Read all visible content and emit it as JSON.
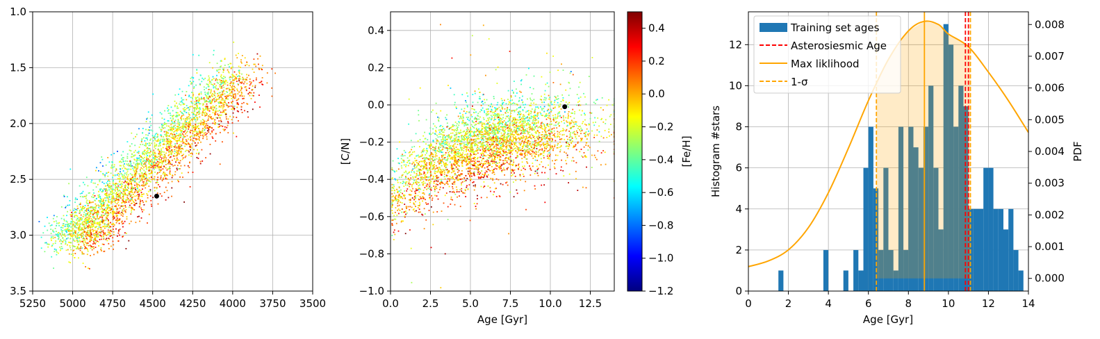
{
  "colors": {
    "grid": "#b0b0b0",
    "hist_bar": "#1f77b4",
    "asteroseismic": "#ff0000",
    "ml": "#ffa500",
    "sigma_band": "#ffa500",
    "colormap": [
      "#00007f",
      "#0000ff",
      "#007fff",
      "#00ffff",
      "#7fff7f",
      "#ffff00",
      "#ff7f00",
      "#ff0000",
      "#7f0000"
    ]
  },
  "chart_data": [
    {
      "type": "scatter",
      "title": "",
      "xlabel": "",
      "ylabel": "",
      "xlim": [
        5250,
        3500
      ],
      "ylim": [
        3.5,
        1.0
      ],
      "x_inverted": true,
      "y_inverted": true,
      "grid": true,
      "xticks": [
        5250,
        5000,
        4750,
        4500,
        4250,
        4000,
        3750,
        3500
      ],
      "xtick_labels": [
        "5250",
        "5000",
        "4750",
        "4500",
        "4250",
        "4000",
        "3750",
        "3500"
      ],
      "yticks": [
        1.0,
        1.5,
        2.0,
        2.5,
        3.0,
        3.5
      ],
      "ytick_labels": [
        "1.0",
        "1.5",
        "2.0",
        "2.5",
        "3.0",
        "3.5"
      ],
      "colored_by": "[Fe/H]",
      "points_described": "several thousand stars along the red-giant branch, Teff vs log g; metal-poor (cyan/blue) at left, metal-rich (red) at right",
      "highlight_point": {
        "x": 4475,
        "y": 2.65
      }
    },
    {
      "type": "scatter",
      "title": "",
      "xlabel": "Age [Gyr]",
      "ylabel": "[C/N]",
      "xlim": [
        0,
        14
      ],
      "ylim": [
        -1.0,
        0.5
      ],
      "grid": true,
      "xticks": [
        0.0,
        2.5,
        5.0,
        7.5,
        10.0,
        12.5
      ],
      "xtick_labels": [
        "0.0",
        "2.5",
        "5.0",
        "7.5",
        "10.0",
        "12.5"
      ],
      "yticks": [
        -1.0,
        -0.8,
        -0.6,
        -0.4,
        -0.2,
        0.0,
        0.2,
        0.4
      ],
      "ytick_labels": [
        "−1.0",
        "−0.8",
        "−0.6",
        "−0.4",
        "−0.2",
        "0.0",
        "0.2",
        "0.4"
      ],
      "colored_by": "[Fe/H]",
      "highlight_point": {
        "x": 10.9,
        "y": -0.01
      },
      "colorbar": {
        "label": "[Fe/H]",
        "range": [
          -1.2,
          0.5
        ],
        "ticks": [
          -1.2,
          -1.0,
          -0.8,
          -0.6,
          -0.4,
          -0.2,
          0.0,
          0.2,
          0.4
        ],
        "tick_labels": [
          "−1.2",
          "−1.0",
          "−0.8",
          "−0.6",
          "−0.4",
          "−0.2",
          "0.0",
          "0.2",
          "0.4"
        ]
      }
    },
    {
      "type": "bar",
      "title": "",
      "xlabel": "Age [Gyr]",
      "ylabel": "Histogram #stars",
      "y2label": "PDF",
      "xlim": [
        0,
        14
      ],
      "ylim": [
        0,
        13.6
      ],
      "y2lim": [
        -0.0004,
        0.0084
      ],
      "grid": true,
      "legend_position": "top-left",
      "xticks": [
        0,
        2,
        4,
        6,
        8,
        10,
        12,
        14
      ],
      "xtick_labels": [
        "0",
        "2",
        "4",
        "6",
        "8",
        "10",
        "12",
        "14"
      ],
      "yticks": [
        0,
        2,
        4,
        6,
        8,
        10,
        12
      ],
      "ytick_labels": [
        "0",
        "2",
        "4",
        "6",
        "8",
        "10",
        "12"
      ],
      "y2ticks": [
        0.0,
        0.001,
        0.002,
        0.003,
        0.004,
        0.005,
        0.006,
        0.007,
        0.008
      ],
      "y2tick_labels": [
        "0.000",
        "0.001",
        "0.002",
        "0.003",
        "0.004",
        "0.005",
        "0.006",
        "0.007",
        "0.008"
      ],
      "bin_width": 0.25,
      "bins": [
        {
          "x": 1.5,
          "count": 1
        },
        {
          "x": 3.75,
          "count": 2
        },
        {
          "x": 4.75,
          "count": 1
        },
        {
          "x": 5.25,
          "count": 2
        },
        {
          "x": 5.5,
          "count": 1
        },
        {
          "x": 5.75,
          "count": 6
        },
        {
          "x": 6.0,
          "count": 8
        },
        {
          "x": 6.25,
          "count": 5
        },
        {
          "x": 6.5,
          "count": 2
        },
        {
          "x": 6.75,
          "count": 6
        },
        {
          "x": 7.0,
          "count": 2
        },
        {
          "x": 7.25,
          "count": 1
        },
        {
          "x": 7.5,
          "count": 8
        },
        {
          "x": 7.75,
          "count": 2
        },
        {
          "x": 8.0,
          "count": 8
        },
        {
          "x": 8.25,
          "count": 7
        },
        {
          "x": 8.5,
          "count": 6
        },
        {
          "x": 8.75,
          "count": 8
        },
        {
          "x": 9.0,
          "count": 10
        },
        {
          "x": 9.25,
          "count": 6
        },
        {
          "x": 9.5,
          "count": 3
        },
        {
          "x": 9.75,
          "count": 13
        },
        {
          "x": 10.0,
          "count": 12
        },
        {
          "x": 10.25,
          "count": 8
        },
        {
          "x": 10.5,
          "count": 10
        },
        {
          "x": 10.75,
          "count": 9
        },
        {
          "x": 11.0,
          "count": 4
        },
        {
          "x": 11.25,
          "count": 4
        },
        {
          "x": 11.5,
          "count": 4
        },
        {
          "x": 11.75,
          "count": 6
        },
        {
          "x": 12.0,
          "count": 6
        },
        {
          "x": 12.25,
          "count": 4
        },
        {
          "x": 12.5,
          "count": 4
        },
        {
          "x": 12.75,
          "count": 3
        },
        {
          "x": 13.0,
          "count": 4
        },
        {
          "x": 13.25,
          "count": 2
        },
        {
          "x": 13.5,
          "count": 1
        }
      ],
      "pdf_curve": {
        "x": [
          0,
          1,
          2,
          3,
          4,
          5,
          6,
          7,
          8,
          8.8,
          9.5,
          10,
          11,
          12,
          13,
          14
        ],
        "y": [
          0.00037,
          0.00055,
          0.0009,
          0.0016,
          0.0027,
          0.0041,
          0.0056,
          0.0069,
          0.0078,
          0.0081,
          0.008,
          0.0077,
          0.0073,
          0.0065,
          0.0056,
          0.0046
        ]
      },
      "asteroseismic_age": [
        10.85,
        11.0
      ],
      "max_likelihood_age": 8.8,
      "sigma_range": [
        6.4,
        11.1
      ],
      "sigma_band_bottom": 0.0
    }
  ],
  "legend": [
    {
      "label": "Training set ages",
      "style": "patch"
    },
    {
      "label": "Asterosiesmic Age",
      "style": "dashed-red"
    },
    {
      "label": "Max liklihood",
      "style": "solid-orange"
    },
    {
      "label": "1-σ",
      "style": "dashed-orange"
    }
  ]
}
